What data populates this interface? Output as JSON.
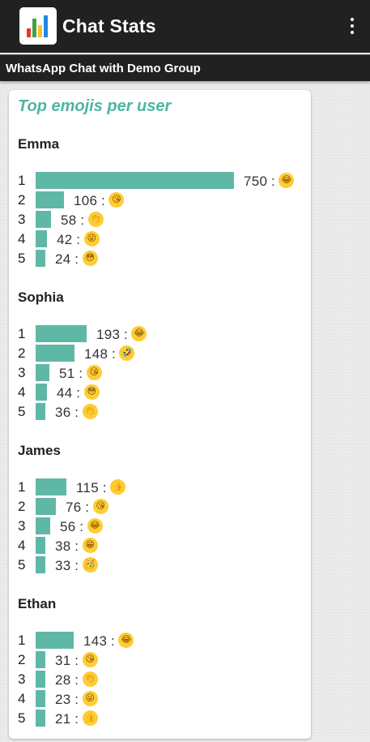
{
  "app": {
    "title": "Chat Stats",
    "subtitle": "WhatsApp Chat with Demo Group"
  },
  "colors": {
    "appbar": "#212121",
    "accent": "#4db6a0",
    "bar": "#5fb8a6"
  },
  "card": {
    "title": "Top emojis per user"
  },
  "users": [
    {
      "name": "Emma",
      "rows": [
        {
          "rank": "1",
          "count": 750,
          "emoji": "😂",
          "icon": "face-with-tears-of-joy-emoji"
        },
        {
          "rank": "2",
          "count": 106,
          "emoji": "😘",
          "icon": "face-blowing-kiss-emoji"
        },
        {
          "rank": "3",
          "count": 58,
          "emoji": "👏",
          "icon": "clapping-hands-emoji"
        },
        {
          "rank": "4",
          "count": 42,
          "emoji": "😜",
          "icon": "winking-tongue-emoji"
        },
        {
          "rank": "5",
          "count": 24,
          "emoji": "😳",
          "icon": "flushed-face-emoji"
        }
      ]
    },
    {
      "name": "Sophia",
      "rows": [
        {
          "rank": "1",
          "count": 193,
          "emoji": "😂",
          "icon": "face-with-tears-of-joy-emoji"
        },
        {
          "rank": "2",
          "count": 148,
          "emoji": "🤣",
          "icon": "rolling-on-floor-laughing-emoji"
        },
        {
          "rank": "3",
          "count": 51,
          "emoji": "😘",
          "icon": "face-blowing-kiss-emoji"
        },
        {
          "rank": "4",
          "count": 44,
          "emoji": "😳",
          "icon": "flushed-face-emoji"
        },
        {
          "rank": "5",
          "count": 36,
          "emoji": "👏",
          "icon": "clapping-hands-emoji"
        }
      ]
    },
    {
      "name": "James",
      "rows": [
        {
          "rank": "1",
          "count": 115,
          "emoji": "👍",
          "icon": "thumbs-up-emoji"
        },
        {
          "rank": "2",
          "count": 76,
          "emoji": "😘",
          "icon": "face-blowing-kiss-emoji"
        },
        {
          "rank": "3",
          "count": 56,
          "emoji": "😂",
          "icon": "face-with-tears-of-joy-emoji"
        },
        {
          "rank": "4",
          "count": 38,
          "emoji": "😁",
          "icon": "beaming-face-emoji"
        },
        {
          "rank": "5",
          "count": 33,
          "emoji": "🥳",
          "icon": "partying-face-emoji"
        }
      ]
    },
    {
      "name": "Ethan",
      "rows": [
        {
          "rank": "1",
          "count": 143,
          "emoji": "😂",
          "icon": "face-with-tears-of-joy-emoji"
        },
        {
          "rank": "2",
          "count": 31,
          "emoji": "😘",
          "icon": "face-blowing-kiss-emoji"
        },
        {
          "rank": "3",
          "count": 28,
          "emoji": "👏",
          "icon": "clapping-hands-emoji"
        },
        {
          "rank": "4",
          "count": 23,
          "emoji": "😜",
          "icon": "winking-tongue-emoji"
        },
        {
          "rank": "5",
          "count": 21,
          "emoji": "👍",
          "icon": "thumbs-up-emoji"
        }
      ]
    }
  ]
}
